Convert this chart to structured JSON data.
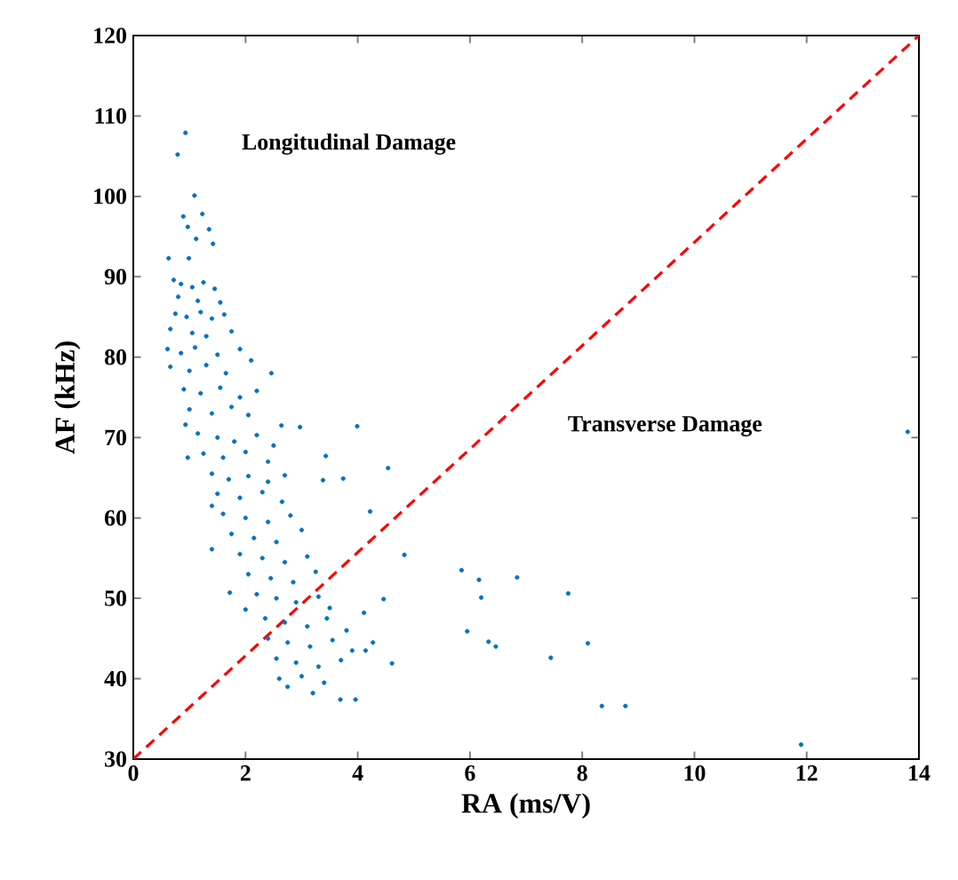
{
  "chart_data": {
    "type": "scatter",
    "xlabel": "RA (ms/V)",
    "ylabel": "AF (kHz)",
    "xlim": [
      0,
      14
    ],
    "ylim": [
      30,
      120
    ],
    "xticks": [
      0,
      2,
      4,
      6,
      8,
      10,
      12,
      14
    ],
    "yticks": [
      30,
      40,
      50,
      60,
      70,
      80,
      90,
      100,
      110,
      120
    ],
    "annotations": [
      "Longitudinal Damage",
      "Transverse Damage"
    ],
    "series": [
      {
        "color": "#0072bd",
        "marker": "circle",
        "x": [
          0.93,
          0.79,
          1.09,
          0.89,
          1.23,
          0.97,
          1.35,
          1.12,
          1.42,
          0.63,
          0.99,
          0.72,
          0.85,
          1.05,
          1.25,
          1.45,
          0.8,
          1.15,
          1.55,
          0.75,
          0.95,
          1.2,
          1.4,
          1.62,
          0.66,
          1.05,
          1.3,
          1.75,
          0.61,
          0.85,
          1.1,
          1.5,
          1.9,
          0.66,
          1.0,
          1.3,
          1.65,
          2.1,
          2.46,
          0.9,
          1.2,
          1.55,
          1.9,
          2.2,
          1.0,
          1.4,
          1.75,
          2.05,
          0.93,
          1.15,
          1.5,
          1.8,
          2.2,
          2.5,
          2.97,
          2.64,
          1.25,
          1.6,
          2.0,
          2.4,
          0.97,
          1.4,
          1.7,
          2.05,
          2.4,
          2.7,
          3.43,
          3.38,
          3.99,
          4.54,
          4.22,
          4.83,
          3.74,
          1.5,
          1.9,
          2.3,
          2.65,
          1.6,
          2.0,
          2.4,
          2.8,
          3.0,
          1.4,
          1.75,
          2.15,
          2.55,
          1.4,
          1.9,
          2.3,
          2.7,
          3.1,
          2.05,
          2.45,
          2.85,
          3.25,
          1.72,
          2.0,
          4.46,
          4.61,
          4.27,
          4.11,
          4.14,
          3.69,
          3.96,
          2.2,
          2.55,
          2.9,
          3.3,
          3.5,
          2.35,
          2.7,
          3.1,
          3.45,
          3.8,
          2.4,
          2.75,
          3.15,
          3.55,
          3.9,
          2.55,
          2.9,
          3.3,
          3.7,
          2.6,
          3.0,
          3.4,
          3.2,
          2.75,
          5.85,
          6.16,
          6.2,
          6.84,
          7.75,
          5.95,
          6.33,
          6.46,
          7.44,
          8.1,
          8.35,
          8.77,
          11.9,
          13.8
        ],
        "values": [
          107.9,
          105.2,
          100.1,
          97.5,
          97.8,
          96.2,
          95.9,
          94.7,
          94.1,
          92.3,
          92.3,
          89.6,
          89.1,
          88.7,
          89.3,
          88.5,
          87.5,
          87.0,
          86.8,
          85.4,
          85.0,
          85.6,
          84.8,
          85.3,
          83.5,
          83.0,
          82.6,
          83.2,
          81.0,
          80.5,
          81.2,
          80.3,
          81.0,
          78.8,
          78.3,
          79.0,
          78.0,
          79.6,
          78.0,
          76.0,
          75.5,
          76.2,
          75.0,
          75.8,
          73.5,
          73.0,
          73.8,
          72.8,
          71.6,
          70.5,
          70.0,
          69.5,
          70.3,
          69.0,
          71.3,
          71.5,
          68.0,
          67.5,
          68.2,
          67.0,
          67.5,
          65.5,
          64.8,
          65.2,
          64.5,
          65.3,
          67.7,
          64.7,
          71.4,
          66.2,
          60.8,
          55.4,
          64.9,
          63.0,
          62.5,
          63.2,
          62.0,
          60.5,
          60.0,
          59.5,
          60.3,
          58.5,
          61.5,
          58.0,
          57.5,
          57.0,
          56.1,
          55.5,
          55.0,
          54.5,
          55.2,
          53.0,
          52.5,
          52.0,
          53.3,
          50.7,
          48.6,
          49.9,
          41.9,
          44.5,
          48.2,
          43.5,
          37.4,
          37.4,
          50.5,
          50.0,
          49.5,
          50.2,
          48.8,
          47.5,
          47.0,
          46.5,
          47.5,
          46.0,
          45.0,
          44.5,
          44.0,
          44.8,
          43.5,
          42.5,
          42.0,
          41.5,
          42.3,
          40.0,
          40.3,
          39.5,
          38.2,
          39.0,
          53.5,
          52.3,
          50.1,
          52.6,
          50.6,
          45.9,
          44.6,
          44.0,
          42.6,
          44.4,
          36.6,
          36.6,
          31.8,
          70.7
        ]
      },
      {
        "type": "line",
        "color": "#ff0000",
        "marker": "none",
        "line_style": "dashed",
        "x": [
          0,
          14
        ],
        "values": [
          30,
          120
        ]
      }
    ]
  }
}
